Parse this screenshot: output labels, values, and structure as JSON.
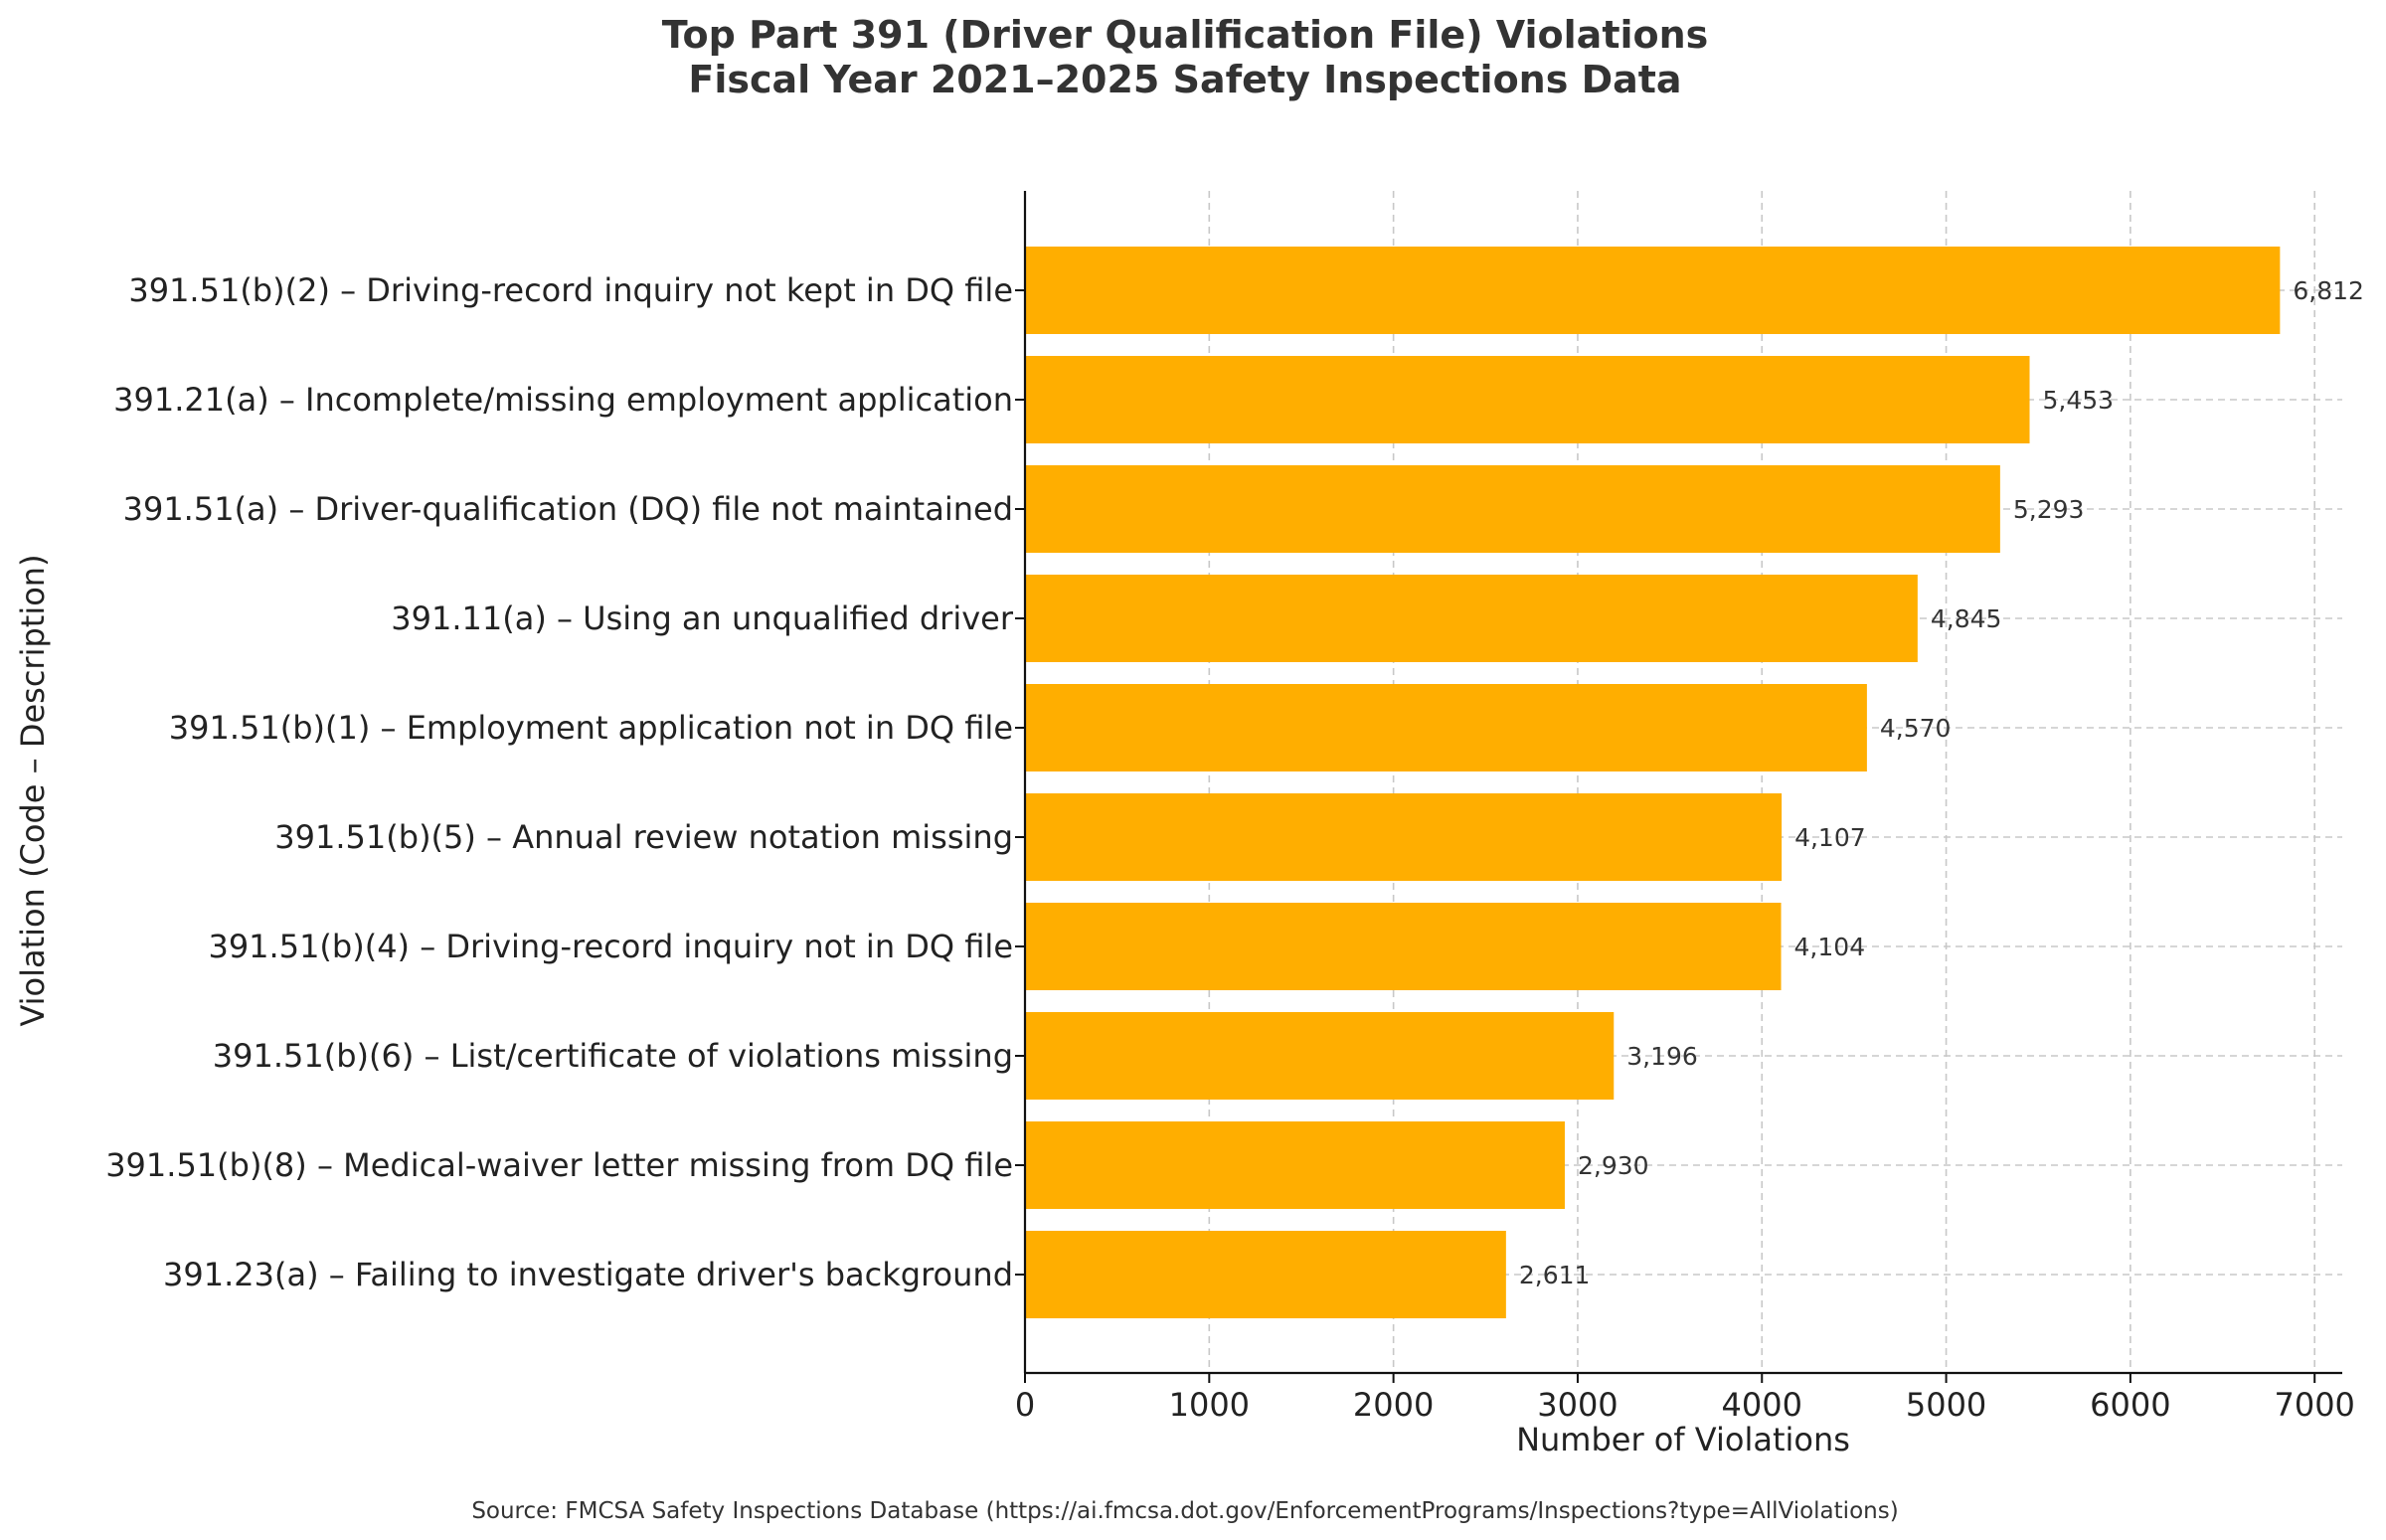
{
  "chart_data": {
    "type": "bar",
    "orientation": "horizontal",
    "title": "Top Part 391 (Driver Qualification File) Violations",
    "subtitle": "Fiscal Year 2021–2025 Safety Inspections Data",
    "xlabel": "Number of Violations",
    "ylabel": "Violation (Code – Description)",
    "xlim": [
      0,
      7150
    ],
    "xticks": [
      0,
      1000,
      2000,
      3000,
      4000,
      5000,
      6000,
      7000
    ],
    "grid": true,
    "bar_color": "#FFAE00",
    "categories": [
      "391.51(b)(2) – Driving-record inquiry not kept in DQ file",
      "391.21(a) – Incomplete/missing employment application",
      "391.51(a) – Driver-qualification (DQ) file not maintained",
      "391.11(a) – Using an unqualified driver",
      "391.51(b)(1) – Employment application not in DQ file",
      "391.51(b)(5) – Annual review notation missing",
      "391.51(b)(4) – Driving-record inquiry not in DQ file",
      "391.51(b)(6) – List/certificate of violations missing",
      "391.51(b)(8) – Medical-waiver letter missing from DQ file",
      "391.23(a) – Failing to investigate driver's background"
    ],
    "values": [
      6812,
      5453,
      5293,
      4845,
      4570,
      4107,
      4104,
      3196,
      2930,
      2611
    ],
    "value_labels": [
      "6,812",
      "5,453",
      "5,293",
      "4,845",
      "4,570",
      "4,107",
      "4,104",
      "3,196",
      "2,930",
      "2,611"
    ],
    "source": "Source: FMCSA Safety Inspections Database (https://ai.fmcsa.dot.gov/EnforcementPrograms/Inspections?type=AllViolations)"
  }
}
